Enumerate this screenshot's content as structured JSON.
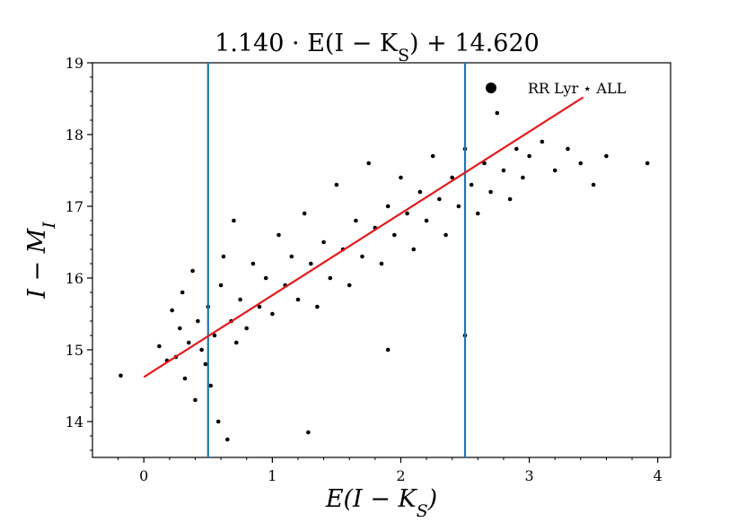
{
  "chart_data": {
    "type": "scatter",
    "title": "1.140 · E(I − K_S) + 14.620",
    "xlabel": "E(I − K_S)",
    "ylabel": "I − M_I",
    "xlim": [
      -0.4,
      4.1
    ],
    "ylim": [
      13.5,
      19.0
    ],
    "xticks": [
      "0",
      "1",
      "2",
      "3",
      "4"
    ],
    "yticks": [
      "14",
      "15",
      "16",
      "17",
      "18",
      "19"
    ],
    "grid": false,
    "legend": {
      "placement": "top-right",
      "entries": [
        "RR Lyr ⋆ ALL"
      ]
    },
    "fit_line": {
      "slope": 1.14,
      "intercept": 14.62,
      "x_range": [
        0.0,
        3.42
      ],
      "color": "#e41a1c"
    },
    "vertical_lines": [
      {
        "x": 0.5,
        "color": "#1f77b4"
      },
      {
        "x": 2.5,
        "color": "#1f77b4"
      }
    ],
    "series": [
      {
        "name": "RR Lyr ⋆ ALL",
        "color": "#000000",
        "points": [
          [
            -0.18,
            14.64
          ],
          [
            0.12,
            15.05
          ],
          [
            0.18,
            14.85
          ],
          [
            0.22,
            15.55
          ],
          [
            0.25,
            14.9
          ],
          [
            0.28,
            15.3
          ],
          [
            0.3,
            15.8
          ],
          [
            0.32,
            14.6
          ],
          [
            0.35,
            15.1
          ],
          [
            0.38,
            16.1
          ],
          [
            0.4,
            14.3
          ],
          [
            0.42,
            15.4
          ],
          [
            0.45,
            15.0
          ],
          [
            0.48,
            14.8
          ],
          [
            0.5,
            15.6
          ],
          [
            0.52,
            14.5
          ],
          [
            0.55,
            15.2
          ],
          [
            0.58,
            14.0
          ],
          [
            0.6,
            15.9
          ],
          [
            0.62,
            16.3
          ],
          [
            0.65,
            13.75
          ],
          [
            0.68,
            15.4
          ],
          [
            0.7,
            16.8
          ],
          [
            0.72,
            15.1
          ],
          [
            0.75,
            15.7
          ],
          [
            0.8,
            15.3
          ],
          [
            0.85,
            16.2
          ],
          [
            0.9,
            15.6
          ],
          [
            0.95,
            16.0
          ],
          [
            1.0,
            15.5
          ],
          [
            1.05,
            16.6
          ],
          [
            1.1,
            15.9
          ],
          [
            1.15,
            16.3
          ],
          [
            1.2,
            15.7
          ],
          [
            1.25,
            16.9
          ],
          [
            1.28,
            13.85
          ],
          [
            1.3,
            16.2
          ],
          [
            1.35,
            15.6
          ],
          [
            1.4,
            16.5
          ],
          [
            1.45,
            16.0
          ],
          [
            1.5,
            17.3
          ],
          [
            1.55,
            16.4
          ],
          [
            1.6,
            15.9
          ],
          [
            1.65,
            16.8
          ],
          [
            1.7,
            16.3
          ],
          [
            1.75,
            17.6
          ],
          [
            1.8,
            16.7
          ],
          [
            1.85,
            16.2
          ],
          [
            1.9,
            17.0
          ],
          [
            1.95,
            16.6
          ],
          [
            2.0,
            17.4
          ],
          [
            2.05,
            16.9
          ],
          [
            2.1,
            16.4
          ],
          [
            2.15,
            17.2
          ],
          [
            2.2,
            16.8
          ],
          [
            2.25,
            17.7
          ],
          [
            2.3,
            17.1
          ],
          [
            2.35,
            16.6
          ],
          [
            2.4,
            17.4
          ],
          [
            2.45,
            17.0
          ],
          [
            2.5,
            17.8
          ],
          [
            2.55,
            17.3
          ],
          [
            2.6,
            16.9
          ],
          [
            2.65,
            17.6
          ],
          [
            2.7,
            17.2
          ],
          [
            2.75,
            18.3
          ],
          [
            2.8,
            17.5
          ],
          [
            2.85,
            17.1
          ],
          [
            2.9,
            17.8
          ],
          [
            2.95,
            17.4
          ],
          [
            3.0,
            17.7
          ],
          [
            3.1,
            17.9
          ],
          [
            3.2,
            17.5
          ],
          [
            3.3,
            17.8
          ],
          [
            3.4,
            17.6
          ],
          [
            3.5,
            17.3
          ],
          [
            3.6,
            17.7
          ],
          [
            3.92,
            17.6
          ],
          [
            2.5,
            15.2
          ],
          [
            1.9,
            15.0
          ]
        ]
      }
    ]
  }
}
